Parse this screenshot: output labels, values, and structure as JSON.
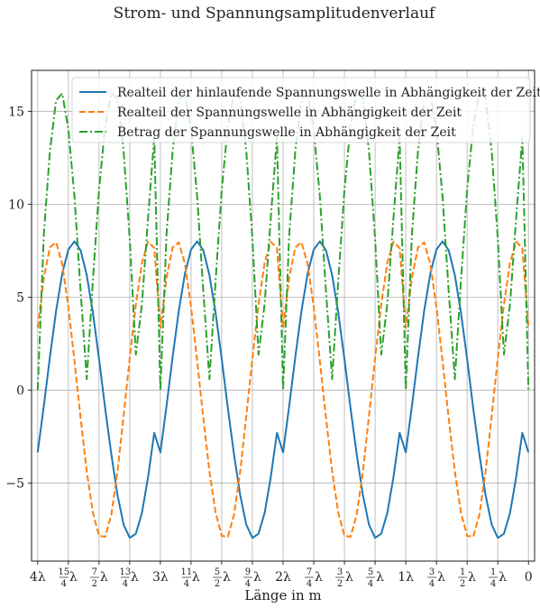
{
  "figure": {
    "suptitle": "Strom- und Spannungsamplitudenverlauf"
  },
  "chart_data": {
    "type": "line",
    "title": "Strom- und Spannungsamplitudenverlauf",
    "xlabel": "Länge in m",
    "ylabel": "",
    "xlim": [
      4.05,
      -0.05
    ],
    "ylim": [
      -9.2,
      17.2
    ],
    "x_inverted": true,
    "grid": true,
    "legend_position": "top-right",
    "x_ticks": [
      {
        "value": 4.0,
        "num": "4",
        "den": "",
        "suffix": "λ"
      },
      {
        "value": 3.75,
        "num": "15",
        "den": "4",
        "suffix": "λ"
      },
      {
        "value": 3.5,
        "num": "7",
        "den": "2",
        "suffix": "λ"
      },
      {
        "value": 3.25,
        "num": "13",
        "den": "4",
        "suffix": "λ"
      },
      {
        "value": 3.0,
        "num": "3",
        "den": "",
        "suffix": "λ"
      },
      {
        "value": 2.75,
        "num": "11",
        "den": "4",
        "suffix": "λ"
      },
      {
        "value": 2.5,
        "num": "5",
        "den": "2",
        "suffix": "λ"
      },
      {
        "value": 2.25,
        "num": "9",
        "den": "4",
        "suffix": "λ"
      },
      {
        "value": 2.0,
        "num": "2",
        "den": "",
        "suffix": "λ"
      },
      {
        "value": 1.75,
        "num": "7",
        "den": "4",
        "suffix": "λ"
      },
      {
        "value": 1.5,
        "num": "3",
        "den": "2",
        "suffix": "λ"
      },
      {
        "value": 1.25,
        "num": "5",
        "den": "4",
        "suffix": "λ"
      },
      {
        "value": 1.0,
        "num": "1",
        "den": "",
        "suffix": "λ"
      },
      {
        "value": 0.75,
        "num": "3",
        "den": "4",
        "suffix": "λ"
      },
      {
        "value": 0.5,
        "num": "1",
        "den": "2",
        "suffix": "λ"
      },
      {
        "value": 0.25,
        "num": "1",
        "den": "4",
        "suffix": "λ"
      },
      {
        "value": 0.0,
        "num": "0",
        "den": "",
        "suffix": ""
      }
    ],
    "y_ticks": [
      {
        "value": 15,
        "label": "15"
      },
      {
        "value": 10,
        "label": "10"
      },
      {
        "value": 5,
        "label": "5"
      },
      {
        "value": 0,
        "label": "0"
      },
      {
        "value": -5,
        "label": "−5"
      }
    ],
    "series": [
      {
        "name": "Realteil der hinlaufende Spannungswelle in Abhängigkeit der Zeit",
        "color": "#1f77b4",
        "dash": "solid",
        "x": [
          4.0,
          3.95,
          3.9,
          3.85,
          3.8,
          3.75,
          3.7,
          3.65,
          3.6,
          3.55,
          3.5,
          3.45,
          3.4,
          3.35,
          3.3,
          3.25,
          3.2,
          3.15,
          3.1,
          3.05,
          3.0,
          2.95,
          2.9,
          2.85,
          2.8,
          2.75,
          2.7,
          2.65,
          2.6,
          2.55,
          2.5,
          2.45,
          2.4,
          2.35,
          2.3,
          2.25,
          2.2,
          2.15,
          2.1,
          2.05,
          2.0,
          1.95,
          1.9,
          1.85,
          1.8,
          1.75,
          1.7,
          1.65,
          1.6,
          1.55,
          1.5,
          1.45,
          1.4,
          1.35,
          1.3,
          1.25,
          1.2,
          1.15,
          1.1,
          1.05,
          1.0,
          0.95,
          0.9,
          0.85,
          0.8,
          0.75,
          0.7,
          0.65,
          0.6,
          0.55,
          0.5,
          0.45,
          0.4,
          0.35,
          0.3,
          0.25,
          0.2,
          0.15,
          0.1,
          0.05,
          0.0
        ],
        "y": [
          -3.35,
          -0.86,
          1.79,
          4.26,
          6.26,
          7.56,
          8.0,
          7.52,
          6.18,
          4.16,
          1.68,
          -0.98,
          -3.45,
          -5.63,
          -7.23,
          -7.95,
          -7.73,
          -6.6,
          -4.67,
          -2.3,
          -3.35,
          -0.86,
          1.79,
          4.26,
          6.26,
          7.56,
          8.0,
          7.52,
          6.18,
          4.16,
          1.68,
          -0.98,
          -3.45,
          -5.63,
          -7.23,
          -7.95,
          -7.73,
          -6.6,
          -4.67,
          -2.3,
          -3.35,
          -0.86,
          1.79,
          4.26,
          6.26,
          7.56,
          8.0,
          7.52,
          6.18,
          4.16,
          1.68,
          -0.98,
          -3.45,
          -5.63,
          -7.23,
          -7.95,
          -7.73,
          -6.6,
          -4.67,
          -2.3,
          -3.35,
          -0.86,
          1.79,
          4.26,
          6.26,
          7.56,
          8.0,
          7.52,
          6.18,
          4.16,
          1.68,
          -0.98,
          -3.45,
          -5.63,
          -7.23,
          -7.95,
          -7.73,
          -6.6,
          -4.67,
          -2.3,
          -3.35
        ]
      },
      {
        "name": "Realteil der Spannungswelle in Abhängigkeit der Zeit",
        "color": "#ff7f0e",
        "dash": "dashed",
        "x": [
          4.0,
          3.95,
          3.9,
          3.85,
          3.8,
          3.75,
          3.7,
          3.65,
          3.6,
          3.55,
          3.5,
          3.45,
          3.4,
          3.35,
          3.3,
          3.25,
          3.2,
          3.15,
          3.1,
          3.05,
          3.0,
          2.95,
          2.9,
          2.85,
          2.8,
          2.75,
          2.7,
          2.65,
          2.6,
          2.55,
          2.5,
          2.45,
          2.4,
          2.35,
          2.3,
          2.25,
          2.2,
          2.15,
          2.1,
          2.05,
          2.0,
          1.95,
          1.9,
          1.85,
          1.8,
          1.75,
          1.7,
          1.65,
          1.6,
          1.55,
          1.5,
          1.45,
          1.4,
          1.35,
          1.3,
          1.25,
          1.2,
          1.15,
          1.1,
          1.05,
          1.0,
          0.95,
          0.9,
          0.85,
          0.8,
          0.75,
          0.7,
          0.65,
          0.6,
          0.55,
          0.5,
          0.45,
          0.4,
          0.35,
          0.3,
          0.25,
          0.2,
          0.15,
          0.1,
          0.05,
          0.0
        ],
        "y": [
          3.35,
          6.04,
          7.68,
          7.95,
          6.79,
          4.47,
          1.56,
          -1.51,
          -4.38,
          -6.6,
          -7.84,
          -7.89,
          -6.71,
          -4.41,
          -1.4,
          1.7,
          4.6,
          6.86,
          7.98,
          7.64,
          3.35,
          6.04,
          7.68,
          7.95,
          6.79,
          4.47,
          1.56,
          -1.51,
          -4.38,
          -6.6,
          -7.84,
          -7.89,
          -6.71,
          -4.41,
          -1.4,
          1.7,
          4.6,
          6.86,
          7.98,
          7.64,
          3.35,
          6.04,
          7.68,
          7.95,
          6.79,
          4.47,
          1.56,
          -1.51,
          -4.38,
          -6.6,
          -7.84,
          -7.89,
          -6.71,
          -4.41,
          -1.4,
          1.7,
          4.6,
          6.86,
          7.98,
          7.64,
          3.35,
          6.04,
          7.68,
          7.95,
          6.79,
          4.47,
          1.56,
          -1.51,
          -4.38,
          -6.6,
          -7.84,
          -7.89,
          -6.71,
          -4.41,
          -1.4,
          1.7,
          4.6,
          6.86,
          7.98,
          7.64,
          3.35
        ]
      },
      {
        "name": "Betrag der Spannungswelle in Abhängigkeit der Zeit",
        "color": "#2ca02c",
        "dash": "dashdot",
        "x": [
          4.0,
          3.95,
          3.9,
          3.85,
          3.8,
          3.75,
          3.7,
          3.65,
          3.6,
          3.55,
          3.5,
          3.45,
          3.4,
          3.35,
          3.3,
          3.25,
          3.2,
          3.15,
          3.1,
          3.05,
          3.0,
          2.95,
          2.9,
          2.85,
          2.8,
          2.75,
          2.7,
          2.65,
          2.6,
          2.55,
          2.5,
          2.45,
          2.4,
          2.35,
          2.3,
          2.25,
          2.2,
          2.15,
          2.1,
          2.05,
          2.0,
          1.95,
          1.9,
          1.85,
          1.8,
          1.75,
          1.7,
          1.65,
          1.6,
          1.55,
          1.5,
          1.45,
          1.4,
          1.35,
          1.3,
          1.25,
          1.2,
          1.15,
          1.1,
          1.05,
          1.0,
          0.95,
          0.9,
          0.85,
          0.8,
          0.75,
          0.7,
          0.65,
          0.6,
          0.55,
          0.5,
          0.45,
          0.4,
          0.35,
          0.3,
          0.25,
          0.2,
          0.15,
          0.1,
          0.05,
          0.0
        ],
        "y": [
          0.0,
          8.36,
          12.88,
          15.59,
          15.96,
          14.03,
          10.4,
          5.31,
          0.59,
          5.89,
          10.76,
          14.22,
          15.98,
          15.7,
          12.88,
          8.15,
          1.91,
          4.65,
          9.3,
          13.59,
          0.0,
          8.36,
          12.88,
          15.59,
          15.96,
          14.03,
          10.4,
          5.31,
          0.59,
          5.89,
          10.76,
          14.22,
          15.98,
          15.7,
          12.88,
          8.15,
          1.91,
          4.65,
          9.3,
          13.59,
          0.0,
          8.36,
          12.88,
          15.59,
          15.96,
          14.03,
          10.4,
          5.31,
          0.59,
          5.89,
          10.76,
          14.22,
          15.98,
          15.7,
          12.88,
          8.15,
          1.91,
          4.65,
          9.3,
          13.59,
          0.0,
          8.36,
          12.88,
          15.59,
          15.96,
          14.03,
          10.4,
          5.31,
          0.59,
          5.89,
          10.76,
          14.22,
          15.98,
          15.7,
          12.88,
          8.15,
          1.91,
          4.65,
          9.3,
          13.59,
          0.0
        ]
      }
    ]
  }
}
